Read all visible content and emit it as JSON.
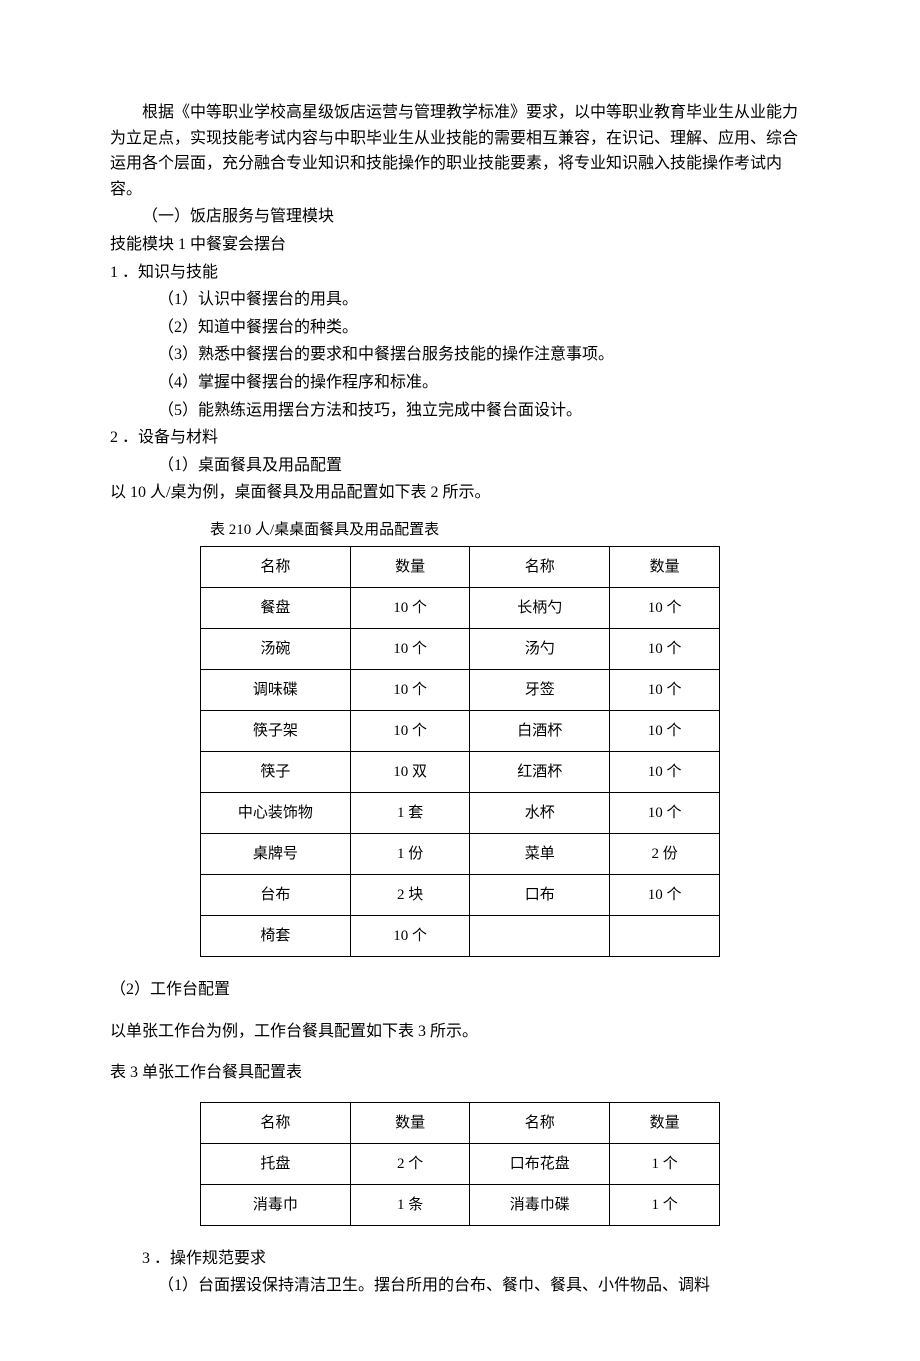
{
  "intro": "根据《中等职业学校高星级饭店运营与管理教学标准》要求，以中等职业教育毕业生从业能力为立足点，实现技能考试内容与中职毕业生从业技能的需要相互兼容，在识记、理解、应用、综合运用各个层面，充分融合专业知识和技能操作的职业技能要素，将专业知识融入技能操作考试内容。",
  "section1": "（一）饭店服务与管理模块",
  "module1": "技能模块 1 中餐宴会摆台",
  "knowledge": {
    "heading": "1 ．知识与技能",
    "items": [
      "（1）认识中餐摆台的用具。",
      "（2）知道中餐摆台的种类。",
      "（3）熟悉中餐摆台的要求和中餐摆台服务技能的操作注意事项。",
      "（4）掌握中餐摆台的操作程序和标准。",
      "（5）能熟练运用摆台方法和技巧，独立完成中餐台面设计。"
    ]
  },
  "equipment": {
    "heading": "2 ．设备与材料",
    "sub1": "（1）桌面餐具及用品配置",
    "sub1_desc": "以 10 人/桌为例，桌面餐具及用品配置如下表 2 所示。"
  },
  "table2": {
    "caption": "表 210 人/桌桌面餐具及用品配置表",
    "headers": [
      "名称",
      "数量",
      "名称",
      "数量"
    ],
    "rows": [
      [
        "餐盘",
        "10 个",
        "长柄勺",
        "10 个"
      ],
      [
        "汤碗",
        "10 个",
        "汤勺",
        "10 个"
      ],
      [
        "调味碟",
        "10 个",
        "牙签",
        "10 个"
      ],
      [
        "筷子架",
        "10 个",
        "白酒杯",
        "10 个"
      ],
      [
        "筷子",
        "10 双",
        "红酒杯",
        "10 个"
      ],
      [
        "中心装饰物",
        "1 套",
        "水杯",
        "10 个"
      ],
      [
        "桌牌号",
        "1 份",
        "菜单",
        "2 份"
      ],
      [
        "台布",
        "2 块",
        "口布",
        "10 个"
      ],
      [
        "椅套",
        "10 个",
        "",
        ""
      ]
    ]
  },
  "equipment2": {
    "sub2": "（2）工作台配置",
    "sub2_desc": "以单张工作台为例，工作台餐具配置如下表 3 所示。"
  },
  "table3": {
    "caption": "表 3 单张工作台餐具配置表",
    "headers": [
      "名称",
      "数量",
      "名称",
      "数量"
    ],
    "rows": [
      [
        "托盘",
        "2 个",
        "口布花盘",
        "1 个"
      ],
      [
        "消毒巾",
        "1 条",
        "消毒巾碟",
        "1 个"
      ]
    ]
  },
  "operation": {
    "heading": "3 ．操作规范要求",
    "item1": "（1）台面摆设保持清洁卫生。摆台所用的台布、餐巾、餐具、小件物品、调料"
  }
}
